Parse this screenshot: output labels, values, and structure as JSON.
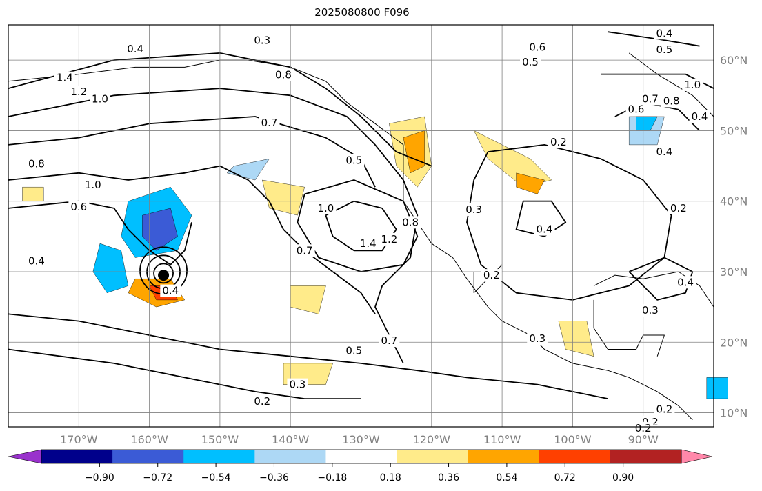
{
  "title": "2025080800 F096",
  "map": {
    "lon_range": [
      -180,
      -80
    ],
    "lat_range": [
      8,
      65
    ],
    "lon_ticks": [
      "170°W",
      "160°W",
      "150°W",
      "140°W",
      "130°W",
      "120°W",
      "110°W",
      "100°W",
      "90°W"
    ],
    "lat_ticks": [
      "60°N",
      "50°N",
      "40°N",
      "30°N",
      "20°N",
      "10°N"
    ],
    "gridlines": true,
    "storm_marker": {
      "lon": -158,
      "lat": 29.5
    }
  },
  "contour_labels": [
    {
      "text": "0.3",
      "lon": -144,
      "lat": 62.8
    },
    {
      "text": "0.4",
      "lon": -162,
      "lat": 61.6
    },
    {
      "text": "0.8",
      "lon": -141,
      "lat": 57.9
    },
    {
      "text": "1.4",
      "lon": -172,
      "lat": 57.5
    },
    {
      "text": "1.2",
      "lon": -170,
      "lat": 55.5
    },
    {
      "text": "1.0",
      "lon": -167,
      "lat": 54.5
    },
    {
      "text": "0.7",
      "lon": -143,
      "lat": 51.1
    },
    {
      "text": "0.8",
      "lon": -176,
      "lat": 45.3
    },
    {
      "text": "0.5",
      "lon": -131,
      "lat": 45.8
    },
    {
      "text": "1.0",
      "lon": -168,
      "lat": 42.3
    },
    {
      "text": "0.6",
      "lon": -170,
      "lat": 39.2
    },
    {
      "text": "1.0",
      "lon": -135,
      "lat": 39.0
    },
    {
      "text": "0.8",
      "lon": -123,
      "lat": 37.0
    },
    {
      "text": "1.4",
      "lon": -129,
      "lat": 34.0
    },
    {
      "text": "1.2",
      "lon": -126,
      "lat": 34.6
    },
    {
      "text": "0.7",
      "lon": -138,
      "lat": 33.0
    },
    {
      "text": "0.4",
      "lon": -176,
      "lat": 31.5
    },
    {
      "text": "0.4",
      "lon": -157,
      "lat": 27.3
    },
    {
      "text": "0.7",
      "lon": -126,
      "lat": 20.2
    },
    {
      "text": "0.5",
      "lon": -131,
      "lat": 18.8
    },
    {
      "text": "0.3",
      "lon": -139,
      "lat": 14.0
    },
    {
      "text": "0.2",
      "lon": -144,
      "lat": 11.6
    },
    {
      "text": "0.6",
      "lon": -105,
      "lat": 61.8
    },
    {
      "text": "0.5",
      "lon": -106,
      "lat": 59.7
    },
    {
      "text": "0.2",
      "lon": -102,
      "lat": 48.4
    },
    {
      "text": "0.3",
      "lon": -114,
      "lat": 38.8
    },
    {
      "text": "0.4",
      "lon": -104,
      "lat": 36.0
    },
    {
      "text": "0.2",
      "lon": -111.5,
      "lat": 29.5
    },
    {
      "text": "0.3",
      "lon": -105,
      "lat": 20.5
    },
    {
      "text": "0.4",
      "lon": -87,
      "lat": 63.8
    },
    {
      "text": "0.5",
      "lon": -87,
      "lat": 61.5
    },
    {
      "text": "1.0",
      "lon": -83,
      "lat": 56.5
    },
    {
      "text": "0.7",
      "lon": -89,
      "lat": 54.5
    },
    {
      "text": "0.8",
      "lon": -86,
      "lat": 54.2
    },
    {
      "text": "0.6",
      "lon": -91,
      "lat": 53.0
    },
    {
      "text": "0.4",
      "lon": -82,
      "lat": 52.0
    },
    {
      "text": "0.4",
      "lon": -87,
      "lat": 47.0
    },
    {
      "text": "0.2",
      "lon": -85,
      "lat": 39.0
    },
    {
      "text": "0.4",
      "lon": -84,
      "lat": 28.5
    },
    {
      "text": "0.3",
      "lon": -89,
      "lat": 24.5
    },
    {
      "text": "0.2",
      "lon": -89,
      "lat": 8.7
    },
    {
      "text": "0.2",
      "lon": -87,
      "lat": 10.5
    },
    {
      "text": "0.2",
      "lon": -90,
      "lat": 7.8
    }
  ],
  "colorbar": {
    "colors": [
      "#9932cc",
      "#00008b",
      "#3b5bd6",
      "#00bfff",
      "#add8f5",
      "#ffffff",
      "#ffeb8a",
      "#ffa500",
      "#ff4000",
      "#b22222",
      "#ff88aa"
    ],
    "labels": [
      "−0.90",
      "−0.72",
      "−0.54",
      "−0.36",
      "−0.18",
      "0.18",
      "0.36",
      "0.54",
      "0.72",
      "0.90"
    ]
  }
}
